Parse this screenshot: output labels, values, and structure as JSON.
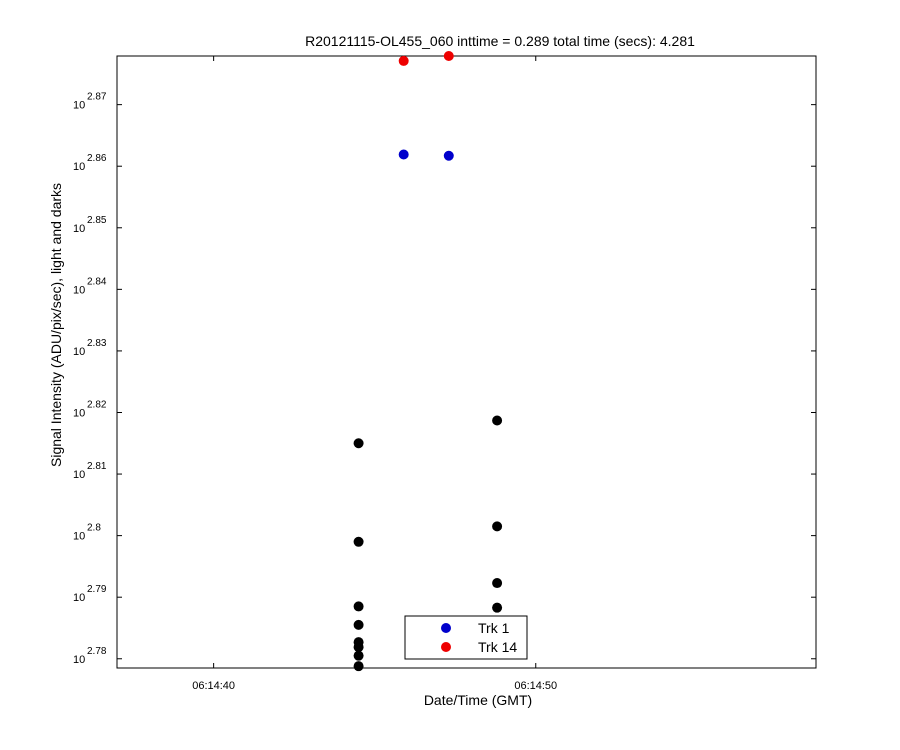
{
  "chart_data": {
    "type": "scatter",
    "title": "R20121115-OL455_060 inttime = 0.289 total time (secs): 4.281",
    "xlabel": "Date/Time (GMT)",
    "ylabel": "Signal Intensity (ADU/pix/sec), light and darks",
    "x_scale": "time",
    "y_scale": "log10",
    "xlim": [
      "06:14:37.0",
      "06:14:58.7"
    ],
    "ylim_exponent": [
      2.7785,
      2.8779
    ],
    "x_ticks": [
      {
        "value": "06:14:40",
        "label": "06:14:40"
      },
      {
        "value": "06:14:50",
        "label": "06:14:50"
      }
    ],
    "y_ticks": [
      {
        "exponent": 2.78,
        "base": "10",
        "sup": "2.78"
      },
      {
        "exponent": 2.79,
        "base": "10",
        "sup": "2.79"
      },
      {
        "exponent": 2.8,
        "base": "10",
        "sup": "2.8"
      },
      {
        "exponent": 2.81,
        "base": "10",
        "sup": "2.81"
      },
      {
        "exponent": 2.82,
        "base": "10",
        "sup": "2.82"
      },
      {
        "exponent": 2.83,
        "base": "10",
        "sup": "2.83"
      },
      {
        "exponent": 2.84,
        "base": "10",
        "sup": "2.84"
      },
      {
        "exponent": 2.85,
        "base": "10",
        "sup": "2.85"
      },
      {
        "exponent": 2.86,
        "base": "10",
        "sup": "2.86"
      },
      {
        "exponent": 2.87,
        "base": "10",
        "sup": "2.87"
      }
    ],
    "grid": false,
    "legend_position": "bottom-center",
    "series": [
      {
        "name": "Trk 1",
        "color": "#0000cc",
        "in_legend": true,
        "points": [
          {
            "x": "06:14:45.9",
            "exponent": 2.8619
          },
          {
            "x": "06:14:47.3",
            "exponent": 2.8617
          }
        ]
      },
      {
        "name": "Trk 14",
        "color": "#ee0000",
        "in_legend": true,
        "points": [
          {
            "x": "06:14:45.9",
            "exponent": 2.8771
          },
          {
            "x": "06:14:47.3",
            "exponent": 2.8779
          }
        ]
      },
      {
        "color": "#000000",
        "in_legend": false,
        "points": [
          {
            "x": "06:14:44.5",
            "exponent": 2.815
          },
          {
            "x": "06:14:44.5",
            "exponent": 2.799
          },
          {
            "x": "06:14:44.5",
            "exponent": 2.7885
          },
          {
            "x": "06:14:44.5",
            "exponent": 2.7855
          },
          {
            "x": "06:14:44.5",
            "exponent": 2.7827
          },
          {
            "x": "06:14:44.5",
            "exponent": 2.7819
          },
          {
            "x": "06:14:44.5",
            "exponent": 2.7805
          },
          {
            "x": "06:14:44.5",
            "exponent": 2.7788
          },
          {
            "x": "06:14:48.8",
            "exponent": 2.8187
          },
          {
            "x": "06:14:48.8",
            "exponent": 2.8015
          },
          {
            "x": "06:14:48.8",
            "exponent": 2.7923
          },
          {
            "x": "06:14:48.8",
            "exponent": 2.7883
          }
        ]
      }
    ]
  }
}
